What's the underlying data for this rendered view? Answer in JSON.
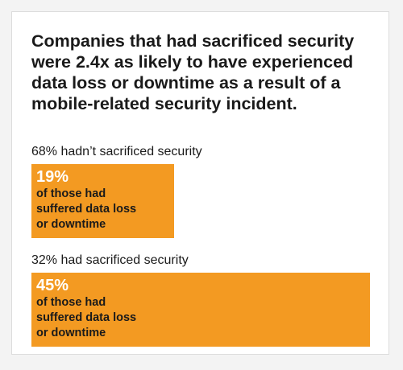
{
  "title": "Companies that had sacrificed security were 2.4x as likely to have experienced data loss or downtime as a result of a mobile-related security incident.",
  "colors": {
    "bar": "#f39a22",
    "bar_percent_text": "#ffffff",
    "text": "#1a1a1a",
    "card_background": "#ffffff",
    "page_background": "#f3f3f3"
  },
  "chart_data": {
    "type": "bar",
    "orientation": "horizontal",
    "title": "Companies that had sacrificed security were 2.4x as likely to have experienced data loss or downtime as a result of a mobile-related security incident.",
    "categories": [
      "68% hadn’t sacrificed security",
      "32% had sacrificed security"
    ],
    "values": [
      19,
      45
    ],
    "unit": "%",
    "value_labels": [
      "19%",
      "45%"
    ],
    "bar_caption": "of those had suffered data loss or downtime",
    "xlim": [
      0,
      45
    ],
    "grid": false,
    "legend": false
  }
}
